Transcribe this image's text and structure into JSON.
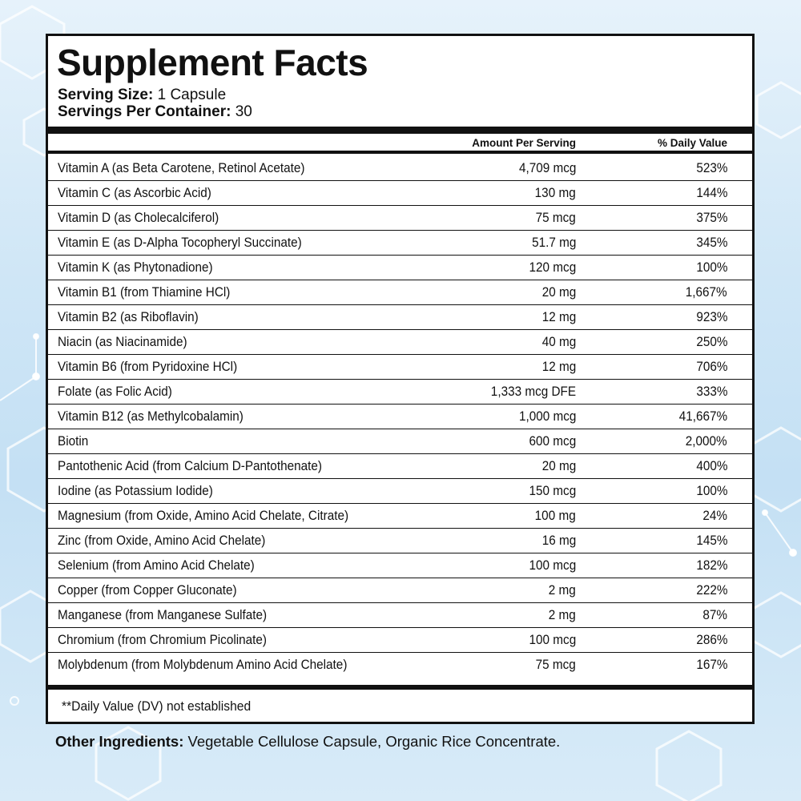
{
  "panel": {
    "title": "Supplement Facts",
    "serving_size_label": "Serving Size:",
    "serving_size_value": "1 Capsule",
    "servings_per_container_label": "Servings Per Container:",
    "servings_per_container_value": "30",
    "column_amount": "Amount Per Serving",
    "column_daily_value": "% Daily Value",
    "rows": [
      {
        "name": "Vitamin A (as Beta Carotene,  Retinol Acetate)",
        "amount": "4,709 mcg",
        "dv": "523%"
      },
      {
        "name": "Vitamin C (as Ascorbic Acid)",
        "amount": "130 mg",
        "dv": "144%"
      },
      {
        "name": "Vitamin D (as Cholecalciferol)",
        "amount": "75 mcg",
        "dv": "375%"
      },
      {
        "name": "Vitamin E (as D-Alpha Tocopheryl Succinate)",
        "amount": "51.7 mg",
        "dv": "345%"
      },
      {
        "name": "Vitamin K (as Phytonadione)",
        "amount": "120 mcg",
        "dv": "100%"
      },
      {
        "name": "Vitamin B1 (from Thiamine HCl)",
        "amount": "20 mg",
        "dv": "1,667%"
      },
      {
        "name": "Vitamin B2 (as Riboflavin)",
        "amount": "12 mg",
        "dv": "923%"
      },
      {
        "name": "Niacin (as Niacinamide)",
        "amount": "40 mg",
        "dv": "250%"
      },
      {
        "name": "Vitamin B6 (from Pyridoxine HCl)",
        "amount": "12 mg",
        "dv": "706%"
      },
      {
        "name": "Folate (as Folic Acid)",
        "amount": "1,333 mcg DFE",
        "dv": "333%"
      },
      {
        "name": "Vitamin B12 (as Methylcobalamin)",
        "amount": "1,000 mcg",
        "dv": "41,667%"
      },
      {
        "name": "Biotin",
        "amount": "600 mcg",
        "dv": "2,000%"
      },
      {
        "name": "Pantothenic Acid (from Calcium D-Pantothenate)",
        "amount": "20 mg",
        "dv": "400%"
      },
      {
        "name": "Iodine (as Potassium Iodide)",
        "amount": "150 mcg",
        "dv": "100%"
      },
      {
        "name": "Magnesium (from Oxide, Amino Acid Chelate, Citrate)",
        "amount": "100 mg",
        "dv": "24%"
      },
      {
        "name": "Zinc (from Oxide, Amino Acid Chelate)",
        "amount": "16 mg",
        "dv": "145%"
      },
      {
        "name": "Selenium (from Amino Acid Chelate)",
        "amount": "100 mcg",
        "dv": "182%"
      },
      {
        "name": "Copper (from Copper Gluconate)",
        "amount": "2 mg",
        "dv": "222%"
      },
      {
        "name": "Manganese (from Manganese Sulfate)",
        "amount": "2 mg",
        "dv": "87%"
      },
      {
        "name": "Chromium (from Chromium Picolinate)",
        "amount": "100 mcg",
        "dv": "286%"
      },
      {
        "name": "Molybdenum (from Molybdenum Amino Acid Chelate)",
        "amount": "75 mcg",
        "dv": "167%"
      }
    ],
    "footnote": "**Daily Value (DV) not established"
  },
  "other_ingredients": {
    "label": "Other Ingredients:",
    "text": "Vegetable Cellulose Capsule, Organic Rice Concentrate."
  },
  "colors": {
    "text": "#111111",
    "panel_background": "#ffffff",
    "page_background": "#cfe6f6",
    "hexagon_accent": "#ffffff"
  }
}
